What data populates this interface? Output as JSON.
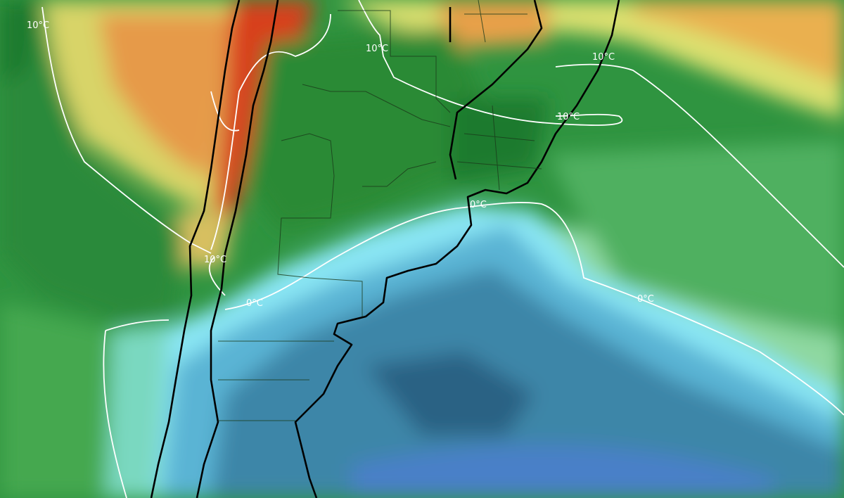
{
  "map": {
    "type": "temperature anomaly / isotherm map",
    "isotherm_labels": [
      {
        "id": "iso-10-west",
        "text": "10°C"
      },
      {
        "id": "iso-10-north",
        "text": "10°C"
      },
      {
        "id": "iso-10-northeast",
        "text": "10°C"
      },
      {
        "id": "iso-10-uruguay",
        "text": "10°C"
      },
      {
        "id": "iso-10-andes",
        "text": "10°C"
      },
      {
        "id": "iso-0-plata",
        "text": "0°C"
      },
      {
        "id": "iso-0-patagonia",
        "text": "0°C"
      },
      {
        "id": "iso-0-ocean",
        "text": "0°C"
      }
    ],
    "colors": {
      "red": "#d8401e",
      "orange": "#ec8c3c",
      "yellow": "#dce070",
      "light_green": "#9ad47a",
      "green": "#3fa446",
      "dark_green": "#1e7a2e",
      "pale_green": "#8ed8a0",
      "cyan": "#8ae6f4",
      "light_blue": "#5ab4d4",
      "blue": "#3e86a8",
      "dark_blue": "#2c6284",
      "deep_blue": "#4a80c8"
    }
  }
}
